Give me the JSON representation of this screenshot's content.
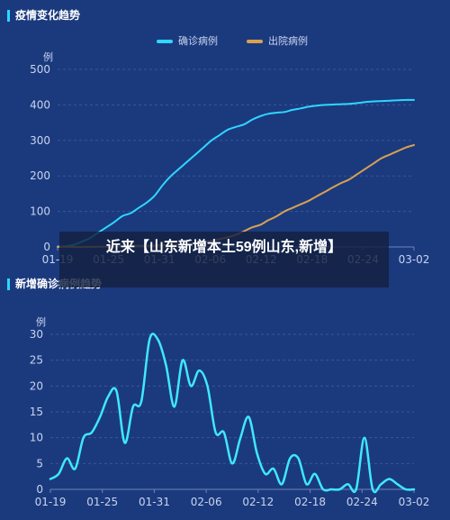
{
  "overlay": {
    "headline": "近来【山东新增本土59例山东,新增】"
  },
  "colors": {
    "background": "#1b3a7e",
    "confirmed": "#2fd6ff",
    "discharged": "#d9a051",
    "new_confirmed": "#3fe8ff",
    "axis_text": "#c9d4ee",
    "grid": "#3a5596"
  },
  "chart_data": [
    {
      "type": "line",
      "title": "疫情变化趋势",
      "ylabel": "例",
      "ylim": [
        0,
        500
      ],
      "yticks": [
        "0",
        "100",
        "200",
        "300",
        "400",
        "500"
      ],
      "x_ticks": [
        "01-19",
        "01-25",
        "01-31",
        "02-06",
        "02-12",
        "02-18",
        "02-24",
        "03-02"
      ],
      "grid": true,
      "legend_position": "top",
      "series": [
        {
          "name": "确诊病例",
          "color": "#2fd6ff",
          "points": [
            [
              0,
              1
            ],
            [
              1,
              2
            ],
            [
              2,
              6
            ],
            [
              3,
              15
            ],
            [
              4,
              25
            ],
            [
              5,
              40
            ],
            [
              6,
              55
            ],
            [
              7,
              70
            ],
            [
              8,
              87
            ],
            [
              9,
              95
            ],
            [
              10,
              110
            ],
            [
              11,
              125
            ],
            [
              12,
              145
            ],
            [
              13,
              175
            ],
            [
              14,
              200
            ],
            [
              15,
              220
            ],
            [
              16,
              240
            ],
            [
              17,
              260
            ],
            [
              18,
              280
            ],
            [
              19,
              300
            ],
            [
              20,
              315
            ],
            [
              21,
              330
            ],
            [
              22,
              338
            ],
            [
              23,
              345
            ],
            [
              24,
              358
            ],
            [
              25,
              368
            ],
            [
              26,
              375
            ],
            [
              27,
              378
            ],
            [
              28,
              380
            ],
            [
              29,
              386
            ],
            [
              30,
              390
            ],
            [
              31,
              395
            ],
            [
              32,
              398
            ],
            [
              33,
              400
            ],
            [
              34,
              401
            ],
            [
              35,
              402
            ],
            [
              36,
              403
            ],
            [
              37,
              405
            ],
            [
              38,
              408
            ],
            [
              39,
              410
            ],
            [
              40,
              411
            ],
            [
              41,
              412
            ],
            [
              42,
              413
            ],
            [
              43,
              414
            ],
            [
              44,
              414
            ]
          ]
        },
        {
          "name": "出院病例",
          "color": "#d9a051",
          "points": [
            [
              0,
              0
            ],
            [
              2,
              0
            ],
            [
              4,
              0
            ],
            [
              6,
              1
            ],
            [
              8,
              2
            ],
            [
              10,
              3
            ],
            [
              12,
              4
            ],
            [
              14,
              6
            ],
            [
              16,
              8
            ],
            [
              18,
              14
            ],
            [
              20,
              22
            ],
            [
              22,
              34
            ],
            [
              24,
              55
            ],
            [
              25,
              62
            ],
            [
              26,
              75
            ],
            [
              27,
              86
            ],
            [
              28,
              100
            ],
            [
              29,
              110
            ],
            [
              30,
              120
            ],
            [
              31,
              130
            ],
            [
              32,
              143
            ],
            [
              33,
              155
            ],
            [
              34,
              168
            ],
            [
              35,
              180
            ],
            [
              36,
              190
            ],
            [
              37,
              205
            ],
            [
              38,
              220
            ],
            [
              39,
              235
            ],
            [
              40,
              250
            ],
            [
              41,
              260
            ],
            [
              42,
              270
            ],
            [
              43,
              280
            ],
            [
              44,
              287
            ]
          ]
        }
      ]
    },
    {
      "type": "line",
      "title": "新增确诊病例趋势",
      "ylabel": "例",
      "ylim": [
        0,
        30
      ],
      "yticks": [
        "0",
        "5",
        "10",
        "15",
        "20",
        "25",
        "30"
      ],
      "x_ticks": [
        "01-19",
        "01-25",
        "01-31",
        "02-06",
        "02-12",
        "02-18",
        "02-24",
        "03-02"
      ],
      "grid": true,
      "series": [
        {
          "name": "",
          "color": "#3fe8ff",
          "points": [
            [
              0,
              2
            ],
            [
              1,
              3
            ],
            [
              2,
              6
            ],
            [
              3,
              4
            ],
            [
              4,
              10
            ],
            [
              5,
              11
            ],
            [
              6,
              14
            ],
            [
              7,
              18
            ],
            [
              8,
              19
            ],
            [
              9,
              9
            ],
            [
              10,
              16
            ],
            [
              11,
              17
            ],
            [
              12,
              29
            ],
            [
              13,
              29
            ],
            [
              14,
              24
            ],
            [
              15,
              16
            ],
            [
              16,
              25
            ],
            [
              17,
              20
            ],
            [
              18,
              23
            ],
            [
              19,
              20
            ],
            [
              20,
              11
            ],
            [
              21,
              11
            ],
            [
              22,
              5
            ],
            [
              23,
              10
            ],
            [
              24,
              14
            ],
            [
              25,
              7
            ],
            [
              26,
              3
            ],
            [
              27,
              4
            ],
            [
              28,
              1
            ],
            [
              29,
              6
            ],
            [
              30,
              6
            ],
            [
              31,
              1
            ],
            [
              32,
              3
            ],
            [
              33,
              0
            ],
            [
              34,
              0
            ],
            [
              35,
              0
            ],
            [
              36,
              1
            ],
            [
              37,
              0
            ],
            [
              38,
              10
            ],
            [
              39,
              0
            ],
            [
              40,
              1
            ],
            [
              41,
              2
            ],
            [
              42,
              1
            ],
            [
              43,
              0
            ],
            [
              44,
              0
            ]
          ]
        }
      ]
    }
  ]
}
